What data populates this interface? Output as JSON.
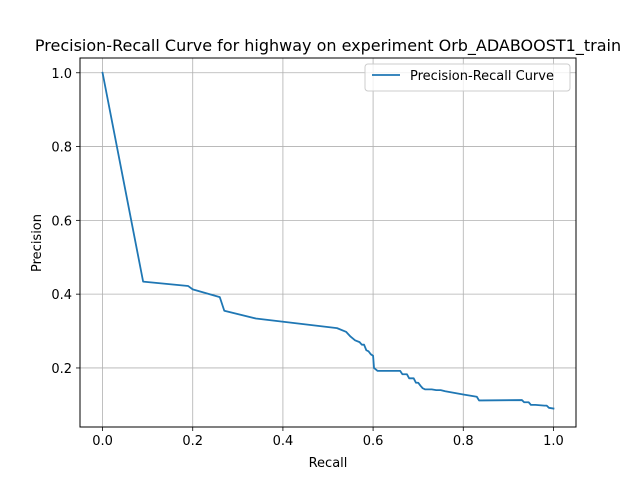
{
  "chart_data": {
    "type": "line",
    "title": "Precision-Recall Curve for highway on experiment Orb_ADABOOST1_train",
    "xlabel": "Recall",
    "ylabel": "Precision",
    "xlim": [
      -0.05,
      1.05
    ],
    "ylim": [
      0.04,
      1.04
    ],
    "xticks": [
      0.0,
      0.2,
      0.4,
      0.6,
      0.8,
      1.0
    ],
    "xtick_labels": [
      "0.0",
      "0.2",
      "0.4",
      "0.6",
      "0.8",
      "1.0"
    ],
    "yticks": [
      0.2,
      0.4,
      0.6,
      0.8,
      1.0
    ],
    "ytick_labels": [
      "0.2",
      "0.4",
      "0.6",
      "0.8",
      "1.0"
    ],
    "grid": true,
    "legend_position": "upper right",
    "series": [
      {
        "name": "Precision-Recall Curve",
        "color": "#1f77b4",
        "x": [
          0.0,
          0.09,
          0.19,
          0.2,
          0.26,
          0.27,
          0.34,
          0.52,
          0.54,
          0.55,
          0.56,
          0.57,
          0.575,
          0.58,
          0.585,
          0.59,
          0.595,
          0.6,
          0.602,
          0.605,
          0.61,
          0.62,
          0.66,
          0.665,
          0.67,
          0.675,
          0.68,
          0.685,
          0.69,
          0.695,
          0.7,
          0.705,
          0.71,
          0.715,
          0.72,
          0.73,
          0.74,
          0.75,
          0.76,
          0.8,
          0.83,
          0.835,
          0.84,
          0.93,
          0.935,
          0.94,
          0.945,
          0.95,
          0.955,
          0.96,
          0.98,
          0.985,
          0.99,
          1.0
        ],
        "y": [
          1.0,
          0.434,
          0.422,
          0.413,
          0.392,
          0.355,
          0.334,
          0.308,
          0.298,
          0.285,
          0.275,
          0.27,
          0.263,
          0.263,
          0.248,
          0.245,
          0.237,
          0.233,
          0.2,
          0.197,
          0.192,
          0.192,
          0.192,
          0.183,
          0.183,
          0.183,
          0.172,
          0.172,
          0.172,
          0.16,
          0.16,
          0.152,
          0.145,
          0.142,
          0.142,
          0.142,
          0.14,
          0.14,
          0.137,
          0.128,
          0.122,
          0.112,
          0.112,
          0.113,
          0.107,
          0.107,
          0.107,
          0.1,
          0.1,
          0.1,
          0.098,
          0.098,
          0.092,
          0.09
        ]
      }
    ]
  }
}
